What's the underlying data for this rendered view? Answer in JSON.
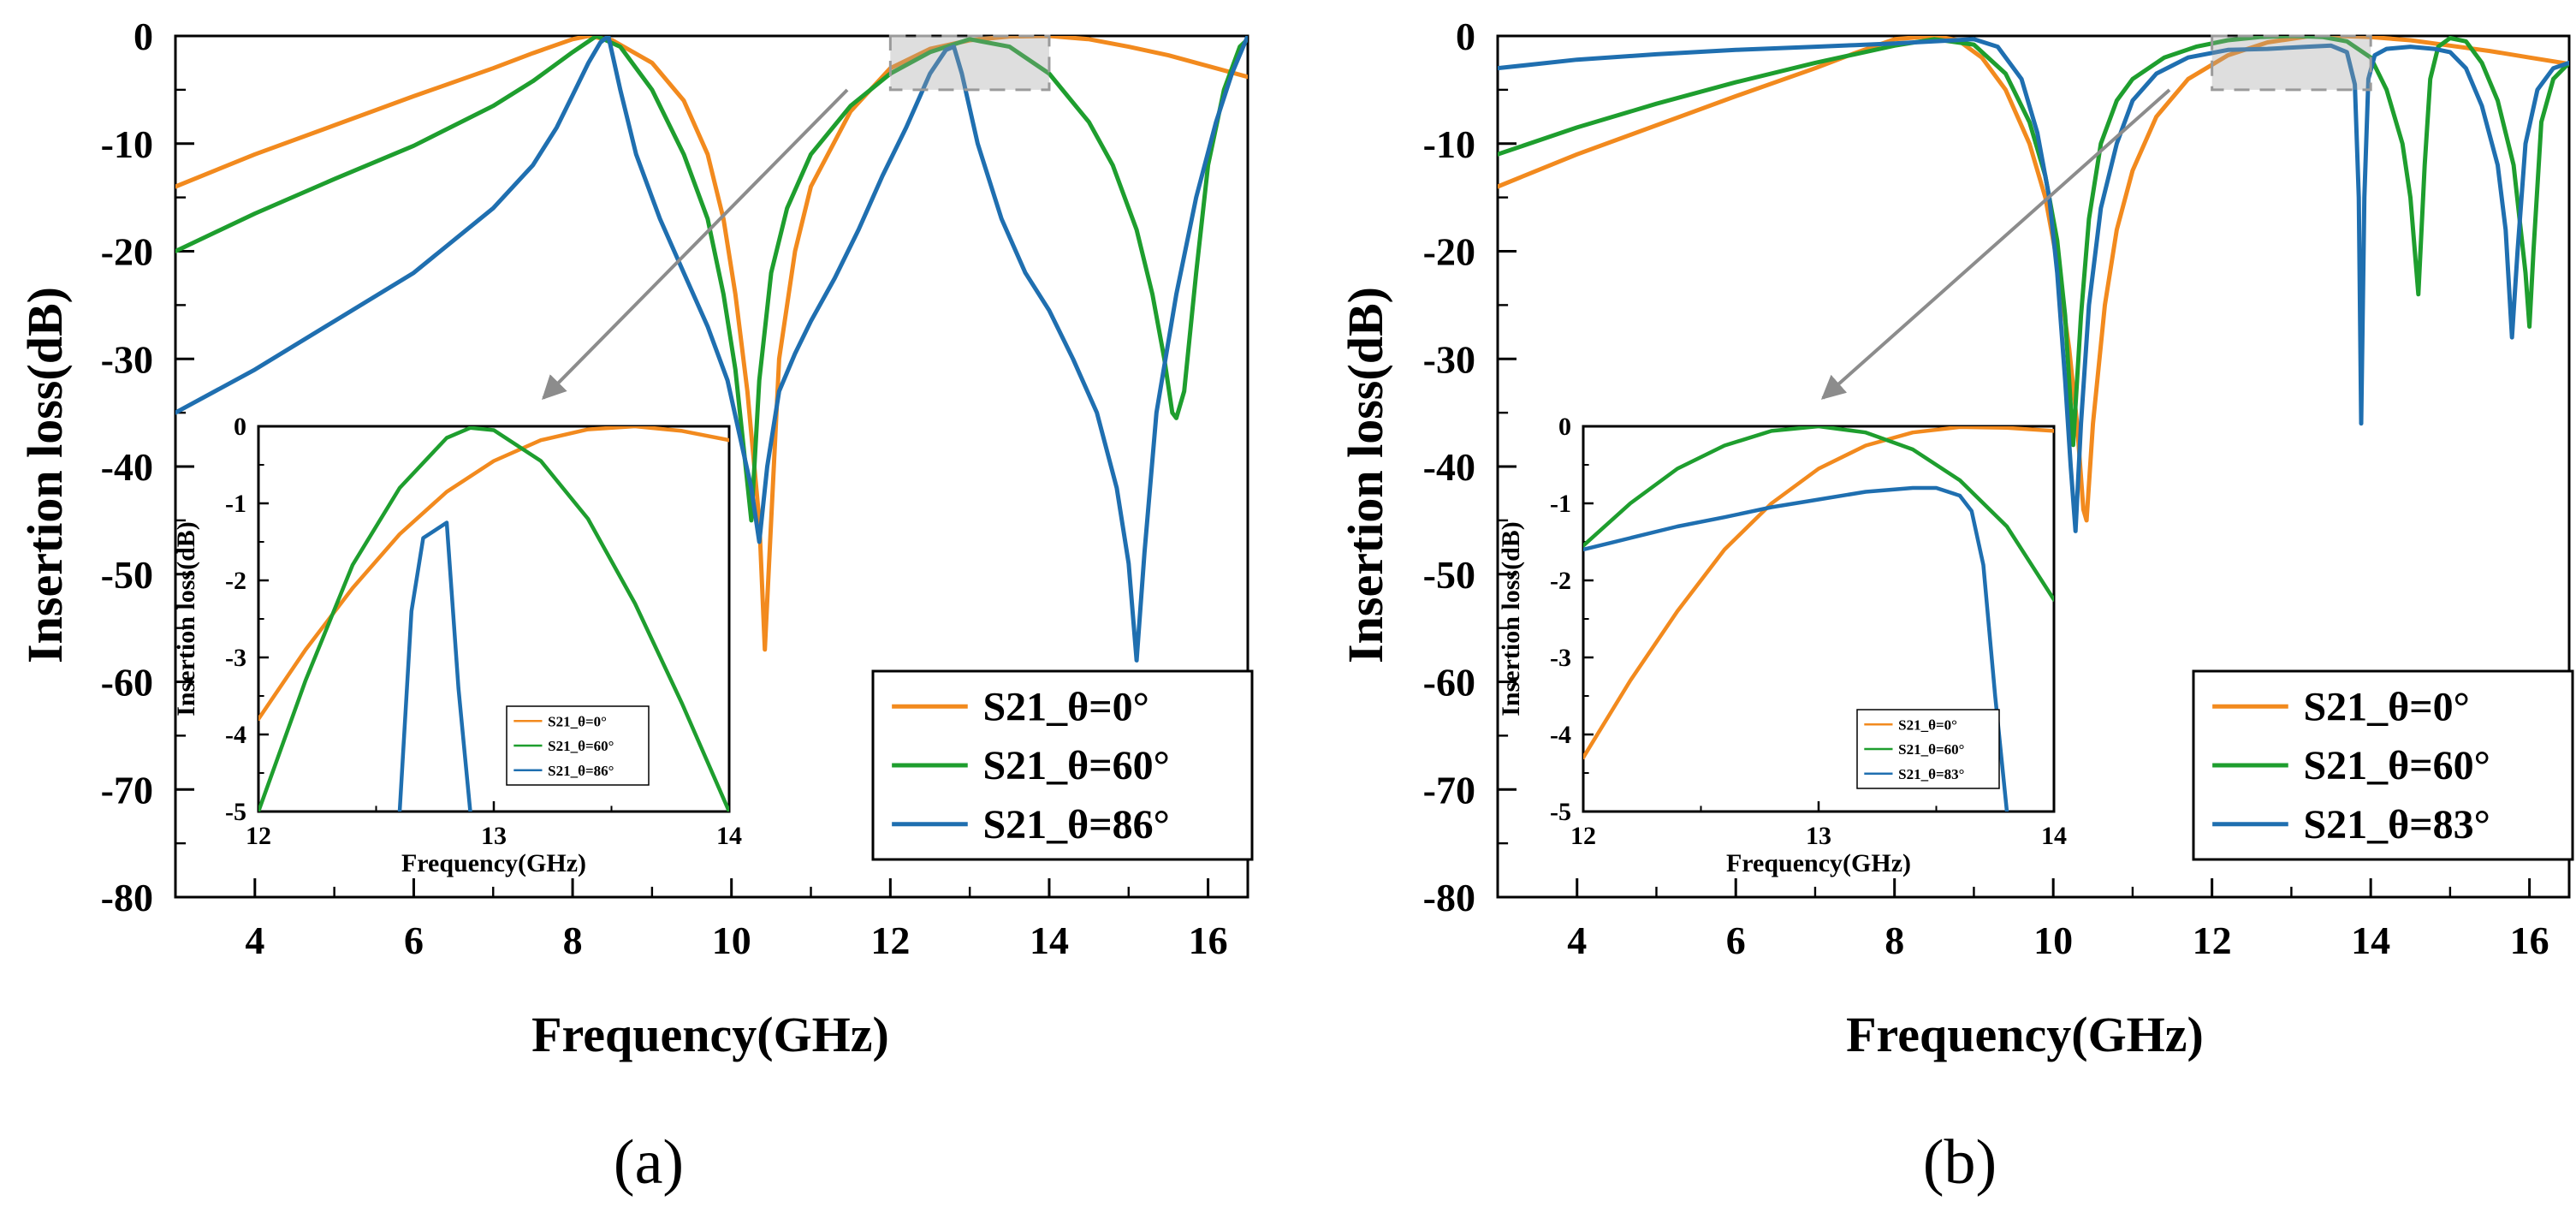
{
  "panels": [
    {
      "caption": "(a)",
      "chart_data": {
        "type": "line",
        "xlabel": "Frequency(GHz)",
        "ylabel": "Insertion loss(dB)",
        "xlim": [
          3,
          16.5
        ],
        "ylim": [
          -80,
          0
        ],
        "xticks": [
          "4",
          "6",
          "8",
          "10",
          "12",
          "14",
          "16"
        ],
        "yticks": [
          "0",
          "-10",
          "-20",
          "-30",
          "-40",
          "-50",
          "-60",
          "-70",
          "-80"
        ],
        "grid": false,
        "legend": "bottom-right",
        "zoom_region": {
          "x": [
            12,
            14
          ],
          "y": [
            -5,
            0
          ]
        },
        "series": [
          {
            "name": "S21_θ=0°",
            "color": "#F28A1E",
            "x": [
              3,
              4,
              5,
              6,
              7,
              7.5,
              8,
              8.2,
              8.5,
              9,
              9.4,
              9.7,
              9.9,
              10.05,
              10.2,
              10.35,
              10.42,
              10.5,
              10.6,
              10.8,
              11,
              11.5,
              12,
              12.5,
              13,
              13.5,
              14,
              14.5,
              15,
              15.5,
              16,
              16.5
            ],
            "y": [
              -14,
              -11,
              -8.3,
              -5.6,
              -3,
              -1.6,
              -0.3,
              0,
              -0.4,
              -2.5,
              -6,
              -11,
              -17,
              -24,
              -33,
              -45,
              -57,
              -45,
              -30,
              -20,
              -14,
              -7,
              -3,
              -1.2,
              -0.4,
              -0.05,
              0,
              -0.3,
              -1,
              -1.8,
              -2.8,
              -3.8
            ]
          },
          {
            "name": "S21_θ=60°",
            "color": "#1E9E2E",
            "x": [
              3,
              4,
              5,
              6,
              7,
              7.5,
              8,
              8.3,
              8.6,
              9,
              9.4,
              9.7,
              9.9,
              10.05,
              10.15,
              10.25,
              10.35,
              10.5,
              10.7,
              11,
              11.5,
              12,
              12.5,
              13,
              13.5,
              14,
              14.5,
              14.8,
              15.1,
              15.3,
              15.45,
              15.55,
              15.6,
              15.7,
              15.85,
              16,
              16.2,
              16.4,
              16.5
            ],
            "y": [
              -20,
              -16.5,
              -13.3,
              -10.2,
              -6.5,
              -4.2,
              -1.5,
              0,
              -1,
              -5,
              -11,
              -17,
              -24,
              -31,
              -38,
              -45,
              -32,
              -22,
              -16,
              -11,
              -6.5,
              -3.5,
              -1.5,
              -0.3,
              -1,
              -3.5,
              -8,
              -12,
              -18,
              -24,
              -30,
              -35,
              -35.5,
              -33,
              -22,
              -12,
              -5,
              -1,
              -0.3
            ]
          },
          {
            "name": "S21_θ=86°",
            "color": "#1F6FB0",
            "x": [
              3,
              4,
              5,
              6,
              7,
              7.5,
              7.8,
              8.0,
              8.2,
              8.35,
              8.45,
              8.6,
              8.8,
              9.1,
              9.4,
              9.7,
              9.95,
              10.1,
              10.25,
              10.35,
              10.45,
              10.6,
              10.8,
              11,
              11.3,
              11.6,
              11.9,
              12.2,
              12.5,
              12.7,
              12.8,
              12.9,
              13.1,
              13.4,
              13.7,
              14.0,
              14.3,
              14.6,
              14.85,
              15.0,
              15.1,
              15.2,
              15.35,
              15.6,
              15.85,
              16.1,
              16.3,
              16.5
            ],
            "y": [
              -35,
              -31,
              -26.5,
              -22,
              -16,
              -12,
              -8.5,
              -5.5,
              -2.5,
              -0.6,
              0,
              -5,
              -11,
              -17,
              -22,
              -27,
              -32,
              -37,
              -42,
              -47,
              -40,
              -33,
              -29.5,
              -26.5,
              -22.5,
              -18,
              -13,
              -8.5,
              -3.5,
              -1.3,
              -1,
              -3.5,
              -10,
              -17,
              -22,
              -25.5,
              -30,
              -35,
              -42,
              -49,
              -58,
              -48,
              -35,
              -24,
              -15,
              -8,
              -3.5,
              0
            ]
          }
        ]
      },
      "inset": {
        "chart_data": {
          "type": "line",
          "xlabel": "Frequency(GHz)",
          "ylabel": "Insertion loss(dB)",
          "xlim": [
            12,
            14
          ],
          "ylim": [
            -5,
            0
          ],
          "xticks": [
            "12",
            "13",
            "14"
          ],
          "yticks": [
            "0",
            "-1",
            "-2",
            "-3",
            "-4",
            "-5"
          ],
          "legend": "bottom-right",
          "series": [
            {
              "name": "S21_θ=0°",
              "color": "#F28A1E",
              "x": [
                12,
                12.2,
                12.4,
                12.6,
                12.8,
                13,
                13.2,
                13.4,
                13.6,
                13.8,
                14
              ],
              "y": [
                -3.8,
                -2.9,
                -2.1,
                -1.4,
                -0.85,
                -0.45,
                -0.18,
                -0.04,
                0,
                -0.06,
                -0.18
              ]
            },
            {
              "name": "S21_θ=60°",
              "color": "#1E9E2E",
              "x": [
                12,
                12.2,
                12.4,
                12.6,
                12.8,
                12.9,
                13,
                13.2,
                13.4,
                13.6,
                13.8,
                14
              ],
              "y": [
                -5,
                -3.3,
                -1.8,
                -0.8,
                -0.15,
                -0.02,
                -0.05,
                -0.45,
                -1.2,
                -2.3,
                -3.6,
                -5
              ]
            },
            {
              "name": "S21_θ=86°",
              "color": "#1F6FB0",
              "x": [
                12.6,
                12.65,
                12.7,
                12.75,
                12.8,
                12.85,
                12.9
              ],
              "y": [
                -5,
                -2.4,
                -1.45,
                -1.35,
                -1.25,
                -3.4,
                -5
              ]
            }
          ]
        }
      }
    },
    {
      "caption": "(b)",
      "chart_data": {
        "type": "line",
        "xlabel": "Frequency(GHz)",
        "ylabel": "Insertion loss(dB)",
        "xlim": [
          3,
          16.5
        ],
        "ylim": [
          -80,
          0
        ],
        "xticks": [
          "4",
          "6",
          "8",
          "10",
          "12",
          "14",
          "16"
        ],
        "yticks": [
          "0",
          "-10",
          "-20",
          "-30",
          "-40",
          "-50",
          "-60",
          "-70",
          "-80"
        ],
        "grid": false,
        "legend": "bottom-right",
        "zoom_region": {
          "x": [
            12,
            14
          ],
          "y": [
            -5,
            0
          ]
        },
        "series": [
          {
            "name": "S21_θ=0°",
            "color": "#F28A1E",
            "x": [
              3,
              4,
              5,
              6,
              7,
              7.5,
              8,
              8.5,
              8.8,
              9.1,
              9.4,
              9.7,
              9.9,
              10.05,
              10.2,
              10.3,
              10.38,
              10.42,
              10.5,
              10.65,
              10.8,
              11,
              11.3,
              11.7,
              12.2,
              12.7,
              13.2,
              13.6,
              14,
              14.5,
              15,
              15.5,
              16,
              16.5
            ],
            "y": [
              -14,
              -11,
              -8.3,
              -5.6,
              -3,
              -1.6,
              -0.3,
              0,
              -0.4,
              -2,
              -5,
              -10,
              -15,
              -21,
              -29,
              -36,
              -44,
              -45,
              -36,
              -25,
              -18,
              -12.5,
              -7.5,
              -4,
              -1.8,
              -0.6,
              -0.05,
              0,
              -0.1,
              -0.4,
              -0.9,
              -1.4,
              -2,
              -2.6
            ]
          },
          {
            "name": "S21_θ=60°",
            "color": "#1E9E2E",
            "x": [
              3,
              4,
              5,
              6,
              7,
              7.5,
              8,
              8.5,
              9,
              9.4,
              9.7,
              9.9,
              10.05,
              10.15,
              10.25,
              10.35,
              10.45,
              10.6,
              10.8,
              11,
              11.4,
              11.8,
              12.2,
              12.6,
              13,
              13.4,
              13.7,
              14.0,
              14.2,
              14.4,
              14.5,
              14.6,
              14.68,
              14.75,
              14.85,
              15.0,
              15.2,
              15.4,
              15.6,
              15.8,
              15.95,
              16.0,
              16.05,
              16.15,
              16.3,
              16.5
            ],
            "y": [
              -11,
              -8.5,
              -6.3,
              -4.3,
              -2.5,
              -1.7,
              -0.9,
              -0.3,
              -0.8,
              -3.5,
              -8,
              -13,
              -19,
              -26,
              -38,
              -26,
              -17,
              -10,
              -6,
              -4,
              -2,
              -1,
              -0.4,
              -0.1,
              0,
              -0.1,
              -0.5,
              -2,
              -5,
              -10,
              -15,
              -24,
              -12,
              -4,
              -1,
              -0.2,
              -0.5,
              -2.5,
              -6,
              -12,
              -22,
              -27,
              -20,
              -8,
              -4,
              -2.5
            ]
          },
          {
            "name": "S21_θ=83°",
            "color": "#1F6FB0",
            "x": [
              3,
              4,
              5,
              6,
              7,
              7.5,
              8,
              8.5,
              9,
              9.3,
              9.6,
              9.8,
              9.95,
              10.05,
              10.15,
              10.22,
              10.28,
              10.35,
              10.45,
              10.6,
              10.8,
              11,
              11.3,
              11.7,
              12.2,
              12.7,
              13.2,
              13.5,
              13.7,
              13.8,
              13.85,
              13.88,
              13.92,
              13.97,
              14.05,
              14.2,
              14.5,
              14.8,
              15,
              15.2,
              15.4,
              15.6,
              15.7,
              15.78,
              15.85,
              15.95,
              16.1,
              16.3,
              16.5
            ],
            "y": [
              -3,
              -2.2,
              -1.7,
              -1.3,
              -1,
              -0.85,
              -0.7,
              -0.5,
              -0.3,
              -1,
              -4,
              -9,
              -15,
              -22,
              -32,
              -40,
              -46,
              -36,
              -25,
              -16,
              -10,
              -6,
              -3.5,
              -2,
              -1.3,
              -1.2,
              -1,
              -0.9,
              -1.5,
              -4.5,
              -15,
              -36,
              -15,
              -4,
              -1.8,
              -1.2,
              -1,
              -1.2,
              -1.5,
              -3,
              -6.5,
              -12,
              -18,
              -28,
              -20,
              -10,
              -5,
              -3,
              -2.5
            ]
          }
        ]
      },
      "inset": {
        "chart_data": {
          "type": "line",
          "xlabel": "Frequency(GHz)",
          "ylabel": "Insertion loss(dB)",
          "xlim": [
            12,
            14
          ],
          "ylim": [
            -5,
            0
          ],
          "xticks": [
            "12",
            "13",
            "14"
          ],
          "yticks": [
            "0",
            "-1",
            "-2",
            "-3",
            "-4",
            "-5"
          ],
          "legend": "bottom-right",
          "series": [
            {
              "name": "S21_θ=0°",
              "color": "#F28A1E",
              "x": [
                12,
                12.2,
                12.4,
                12.6,
                12.8,
                13,
                13.2,
                13.4,
                13.6,
                13.8,
                14
              ],
              "y": [
                -4.3,
                -3.3,
                -2.4,
                -1.6,
                -1,
                -0.55,
                -0.25,
                -0.08,
                -0.01,
                -0.02,
                -0.06
              ]
            },
            {
              "name": "S21_θ=60°",
              "color": "#1E9E2E",
              "x": [
                12,
                12.2,
                12.4,
                12.6,
                12.8,
                13,
                13.2,
                13.4,
                13.6,
                13.8,
                14
              ],
              "y": [
                -1.55,
                -1,
                -0.55,
                -0.25,
                -0.06,
                0,
                -0.08,
                -0.3,
                -0.7,
                -1.3,
                -2.25
              ]
            },
            {
              "name": "S21_θ=83°",
              "color": "#1F6FB0",
              "x": [
                12,
                12.2,
                12.4,
                12.6,
                12.8,
                13,
                13.2,
                13.4,
                13.5,
                13.6,
                13.65,
                13.7,
                13.75,
                13.8
              ],
              "y": [
                -1.6,
                -1.45,
                -1.3,
                -1.18,
                -1.05,
                -0.95,
                -0.85,
                -0.8,
                -0.8,
                -0.9,
                -1.1,
                -1.8,
                -3.5,
                -5
              ]
            }
          ]
        }
      }
    }
  ]
}
